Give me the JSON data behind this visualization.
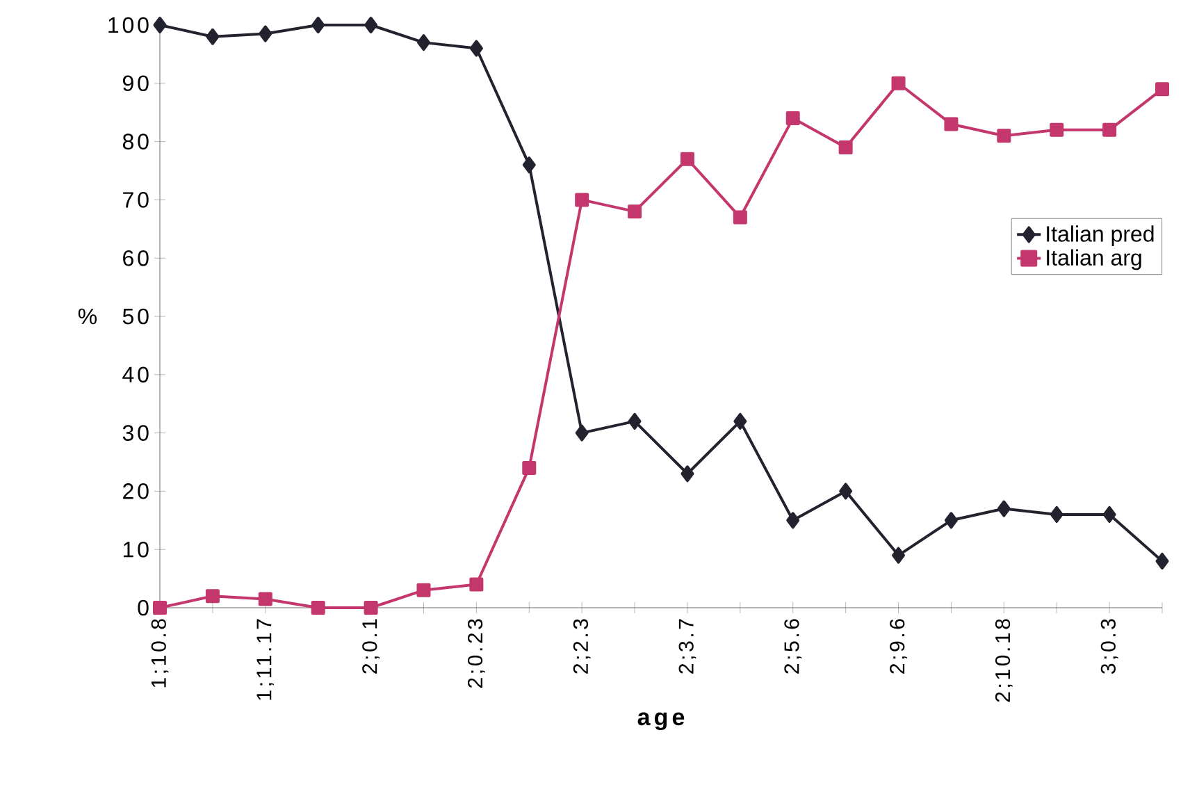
{
  "chart_data": {
    "type": "line",
    "xlabel": "age",
    "ylabel": "%",
    "categories": [
      "1;10.8",
      null,
      "1;11.17",
      null,
      "2;0.1",
      null,
      "2;0.23",
      null,
      "2;2.3",
      null,
      "2;3.7",
      null,
      "2;5.6",
      null,
      "2;9.6",
      null,
      "2;10.18",
      null,
      "3;0.3",
      null
    ],
    "series": [
      {
        "name": "Italian pred",
        "color": "#23232f",
        "marker": "diamond",
        "values": [
          100,
          98,
          98.5,
          100,
          100,
          97,
          96,
          76,
          30,
          32,
          23,
          32,
          15,
          20,
          9,
          15,
          17,
          16,
          16,
          8
        ]
      },
      {
        "name": "Italian arg",
        "color": "#c4376c",
        "marker": "square",
        "values": [
          0,
          2,
          1.5,
          0,
          0,
          3,
          4,
          24,
          70,
          68,
          77,
          67,
          84,
          79,
          90,
          83,
          81,
          82,
          82,
          89
        ]
      }
    ],
    "ylim": [
      0,
      100
    ],
    "yticks": [
      0,
      10,
      20,
      30,
      40,
      50,
      60,
      70,
      80,
      90,
      100
    ],
    "legend": "right",
    "grid": false
  }
}
